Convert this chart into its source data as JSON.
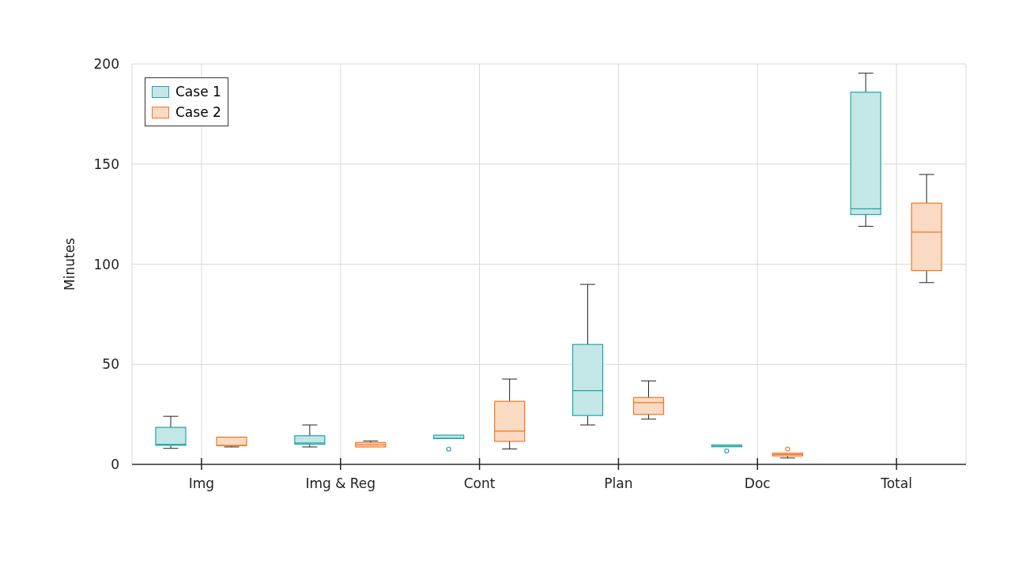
{
  "chart_data": {
    "type": "box",
    "ylabel": "Minutes",
    "categories": [
      "Img",
      "Img & Reg",
      "Cont",
      "Plan",
      "Doc",
      "Total"
    ],
    "ylim": [
      0,
      200
    ],
    "yticks": [
      0,
      50,
      100,
      150,
      200
    ],
    "grid": true,
    "legend": "top left",
    "series": [
      {
        "name": "Case 1",
        "color": "#20a5a5",
        "boxes": [
          {
            "low": 8,
            "q1": 9.5,
            "median": 10,
            "q3": 18.5,
            "high": 24
          },
          {
            "low": 8.7,
            "q1": 10.1,
            "median": 10.7,
            "q3": 14.3,
            "high": 19.7
          },
          {
            "low": 12.9,
            "q1": 12.9,
            "median": 13,
            "q3": 14.6,
            "high": 14.6,
            "outliers": [
              7.6
            ]
          },
          {
            "low": 19.7,
            "q1": 24.4,
            "median": 36.8,
            "q3": 59.9,
            "high": 89.9
          },
          {
            "low": 8.8,
            "q1": 8.8,
            "median": 9,
            "q3": 9.7,
            "high": 9.7,
            "outliers": [
              6.7
            ]
          },
          {
            "low": 118.9,
            "q1": 124.8,
            "median": 127.7,
            "q3": 185.9,
            "high": 195.4
          }
        ]
      },
      {
        "name": "Case 2",
        "color": "#f07623",
        "boxes": [
          {
            "low": 8.7,
            "q1": 9.4,
            "median": 9.4,
            "q3": 13.6,
            "high": 13.6
          },
          {
            "low": 8.7,
            "q1": 8.7,
            "median": 9.8,
            "q3": 10.9,
            "high": 11.7
          },
          {
            "low": 7.7,
            "q1": 11.5,
            "median": 16.6,
            "q3": 31.5,
            "high": 42.6
          },
          {
            "low": 22.6,
            "q1": 25,
            "median": 30.8,
            "q3": 33.4,
            "high": 41.7
          },
          {
            "low": 3.2,
            "q1": 4.2,
            "median": 5,
            "q3": 5.6,
            "high": 5.6,
            "outliers": [
              7.7
            ]
          },
          {
            "low": 90.8,
            "q1": 96.8,
            "median": 116,
            "q3": 130.5,
            "high": 144.8
          }
        ]
      }
    ]
  }
}
